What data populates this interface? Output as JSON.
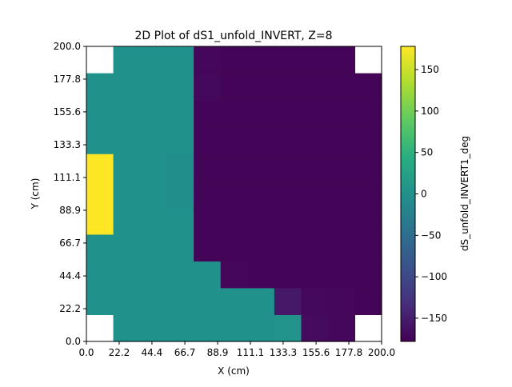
{
  "chart_data": {
    "type": "heatmap",
    "title": "2D Plot of dS1_unfold_INVERT, Z=8",
    "xlabel": "X (cm)",
    "ylabel": "Y (cm)",
    "colorbar_label": "dS_unfold_INVERT1_deg",
    "xlim": [
      0.0,
      200.0
    ],
    "ylim": [
      0.0,
      200.0
    ],
    "clim": [
      -178,
      178
    ],
    "colormap": "viridis",
    "x_ticks": [
      "0.0",
      "22.2",
      "44.4",
      "66.7",
      "88.9",
      "111.1",
      "133.3",
      "155.6",
      "177.8",
      "200.0"
    ],
    "y_ticks": [
      "0.0",
      "22.2",
      "44.4",
      "66.7",
      "88.9",
      "111.1",
      "133.3",
      "155.6",
      "177.8",
      "200.0"
    ],
    "colorbar_ticks": [
      "150",
      "100",
      "50",
      "0",
      "−50",
      "−100",
      "−150"
    ],
    "colorbar_tick_values": [
      150,
      100,
      50,
      0,
      -50,
      -100,
      -150
    ],
    "x_edges": [
      0.0,
      18.2,
      36.4,
      54.5,
      72.7,
      90.9,
      109.1,
      127.3,
      145.5,
      163.6,
      181.8,
      200.0
    ],
    "y_edges": [
      0.0,
      18.2,
      36.4,
      54.5,
      72.7,
      90.9,
      109.1,
      127.3,
      145.5,
      163.6,
      181.8,
      200.0
    ],
    "values": [
      [
        null,
        2,
        2,
        2,
        2,
        2,
        2,
        5,
        -168,
        -172,
        null
      ],
      [
        2,
        2,
        2,
        2,
        2,
        2,
        2,
        -155,
        -170,
        -172,
        -175
      ],
      [
        2,
        2,
        2,
        2,
        2,
        -172,
        -174,
        -175,
        -175,
        -175,
        -175
      ],
      [
        2,
        2,
        2,
        2,
        -175,
        -175,
        -175,
        -175,
        -175,
        -175,
        -175
      ],
      [
        178,
        2,
        2,
        2,
        -175,
        -175,
        -175,
        -175,
        -175,
        -175,
        -175
      ],
      [
        178,
        2,
        2,
        -5,
        -175,
        -175,
        -175,
        -175,
        -175,
        -175,
        -175
      ],
      [
        178,
        2,
        2,
        -5,
        -175,
        -175,
        -175,
        -175,
        -175,
        -175,
        -175
      ],
      [
        2,
        2,
        2,
        2,
        -175,
        -175,
        -175,
        -175,
        -175,
        -175,
        -175
      ],
      [
        2,
        2,
        2,
        2,
        -175,
        -175,
        -175,
        -175,
        -175,
        -175,
        -175
      ],
      [
        2,
        2,
        2,
        2,
        -170,
        -175,
        -175,
        -175,
        -175,
        -175,
        -175
      ],
      [
        null,
        2,
        2,
        2,
        -172,
        -175,
        -175,
        -175,
        -175,
        -175,
        null
      ]
    ]
  }
}
